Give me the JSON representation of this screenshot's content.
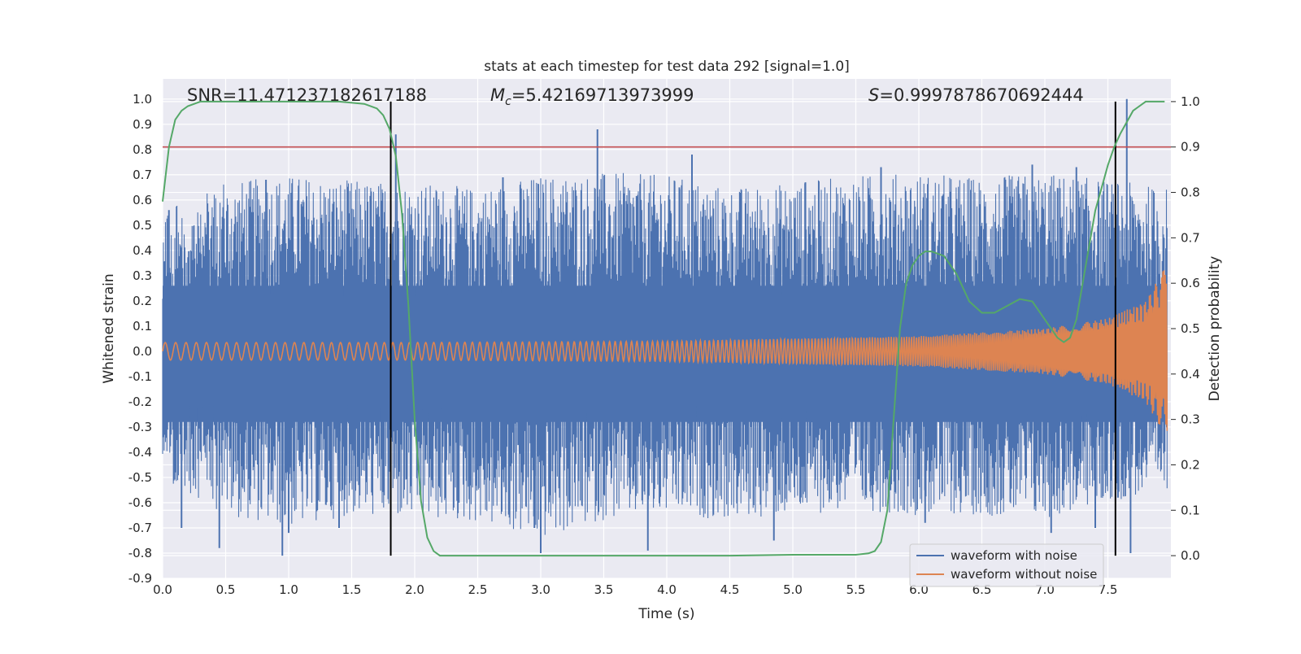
{
  "chart_data": {
    "type": "line",
    "title": "stats at each timestep for test data 292 [signal=1.0]",
    "xlabel": "Time (s)",
    "ylabel": "Whitened strain",
    "y2label": "Detection probability",
    "xlim": [
      0.0,
      8.0
    ],
    "ylim": [
      -0.9,
      1.08
    ],
    "y2lim": [
      -0.05,
      1.05
    ],
    "grid": true,
    "legend_position": "lower-right",
    "x_ticks": [
      "0.0",
      "0.5",
      "1.0",
      "1.5",
      "2.0",
      "2.5",
      "3.0",
      "3.5",
      "4.0",
      "4.5",
      "5.0",
      "5.5",
      "6.0",
      "6.5",
      "7.0",
      "7.5"
    ],
    "y_ticks": [
      "-0.9",
      "-0.8",
      "-0.7",
      "-0.6",
      "-0.5",
      "-0.4",
      "-0.3",
      "-0.2",
      "-0.1",
      "0.0",
      "0.1",
      "0.2",
      "0.3",
      "0.4",
      "0.5",
      "0.6",
      "0.7",
      "0.8",
      "0.9",
      "1.0"
    ],
    "y2_ticks": [
      "0.0",
      "0.1",
      "0.2",
      "0.3",
      "0.4",
      "0.5",
      "0.6",
      "0.7",
      "0.8",
      "0.9",
      "1.0"
    ],
    "annotations": {
      "snr": "SNR=11.471237182617188",
      "mc_prefix": "M",
      "mc_sub": "c",
      "mc_value": "=5.42169713973999",
      "s_prefix": "S",
      "s_value": "=0.9997878670692444"
    },
    "threshold": {
      "axis": "y2",
      "value": 0.9,
      "color": "#c44e52"
    },
    "vertical_markers": [
      1.81,
      7.56
    ],
    "noise_envelope": {
      "x": [
        0.0,
        0.5,
        1.0,
        1.5,
        2.0,
        2.5,
        3.0,
        3.5,
        4.0,
        4.5,
        5.0,
        5.5,
        6.0,
        6.5,
        7.0,
        7.5,
        7.97
      ],
      "upper": [
        0.5,
        0.62,
        0.65,
        0.63,
        0.62,
        0.6,
        0.65,
        0.66,
        0.65,
        0.6,
        0.62,
        0.65,
        0.66,
        0.64,
        0.66,
        0.63,
        0.6
      ],
      "lower": [
        -0.45,
        -0.6,
        -0.65,
        -0.6,
        -0.62,
        -0.63,
        -0.7,
        -0.62,
        -0.6,
        -0.62,
        -0.6,
        -0.58,
        -0.6,
        -0.6,
        -0.62,
        -0.55,
        -0.5
      ]
    },
    "noise_spikes": [
      {
        "x": 0.05,
        "y": 0.56
      },
      {
        "x": 0.15,
        "y": -0.7
      },
      {
        "x": 0.45,
        "y": -0.78
      },
      {
        "x": 0.82,
        "y": 0.68
      },
      {
        "x": 0.95,
        "y": -0.81
      },
      {
        "x": 1.0,
        "y": -0.72
      },
      {
        "x": 1.4,
        "y": -0.7
      },
      {
        "x": 1.85,
        "y": 0.86
      },
      {
        "x": 2.35,
        "y": -0.6
      },
      {
        "x": 2.7,
        "y": 0.69
      },
      {
        "x": 2.95,
        "y": -0.7
      },
      {
        "x": 3.0,
        "y": -0.8
      },
      {
        "x": 3.45,
        "y": 0.88
      },
      {
        "x": 3.85,
        "y": -0.79
      },
      {
        "x": 4.1,
        "y": 0.65
      },
      {
        "x": 4.2,
        "y": 0.78
      },
      {
        "x": 4.85,
        "y": -0.75
      },
      {
        "x": 5.1,
        "y": 0.67
      },
      {
        "x": 5.7,
        "y": 0.73
      },
      {
        "x": 6.05,
        "y": -0.68
      },
      {
        "x": 6.9,
        "y": 0.74
      },
      {
        "x": 7.05,
        "y": -0.72
      },
      {
        "x": 7.25,
        "y": 0.73
      },
      {
        "x": 7.58,
        "y": -0.58
      },
      {
        "x": 7.65,
        "y": 1.0
      },
      {
        "x": 7.68,
        "y": -0.8
      },
      {
        "x": 7.4,
        "y": -0.7
      }
    ],
    "series": [
      {
        "name": "waveform with noise",
        "color": "#4c72b0"
      },
      {
        "name": "waveform without noise",
        "color": "#dd8452",
        "amplitude": {
          "x": [
            0.0,
            2.0,
            4.0,
            6.0,
            7.0,
            7.5,
            7.8,
            7.95
          ],
          "y": [
            0.035,
            0.035,
            0.04,
            0.06,
            0.09,
            0.13,
            0.2,
            0.33
          ]
        }
      },
      {
        "axis": "y2",
        "color": "#55a868",
        "x": [
          0.0,
          0.05,
          0.1,
          0.15,
          0.2,
          0.3,
          0.4,
          0.5,
          0.6,
          1.0,
          1.4,
          1.6,
          1.7,
          1.75,
          1.8,
          1.85,
          1.9,
          1.95,
          2.0,
          2.05,
          2.1,
          2.15,
          2.2,
          2.4,
          3.0,
          4.0,
          4.5,
          5.0,
          5.5,
          5.6,
          5.65,
          5.7,
          5.75,
          5.8,
          5.85,
          5.9,
          5.95,
          6.0,
          6.05,
          6.1,
          6.2,
          6.3,
          6.4,
          6.5,
          6.6,
          6.7,
          6.8,
          6.9,
          7.0,
          7.1,
          7.15,
          7.2,
          7.25,
          7.3,
          7.4,
          7.5,
          7.55,
          7.6,
          7.7,
          7.8,
          7.9,
          7.95
        ],
        "y": [
          0.78,
          0.9,
          0.96,
          0.98,
          0.99,
          1.0,
          1.0,
          1.0,
          1.0,
          1.0,
          1.0,
          0.995,
          0.985,
          0.97,
          0.94,
          0.88,
          0.75,
          0.55,
          0.3,
          0.12,
          0.04,
          0.01,
          0.0,
          0.0,
          0.0,
          0.0,
          0.0,
          0.002,
          0.002,
          0.005,
          0.01,
          0.03,
          0.1,
          0.3,
          0.5,
          0.6,
          0.64,
          0.66,
          0.67,
          0.67,
          0.66,
          0.62,
          0.56,
          0.535,
          0.535,
          0.55,
          0.565,
          0.56,
          0.52,
          0.48,
          0.47,
          0.48,
          0.52,
          0.6,
          0.76,
          0.86,
          0.9,
          0.93,
          0.98,
          1.0,
          1.0,
          1.0
        ]
      }
    ]
  }
}
